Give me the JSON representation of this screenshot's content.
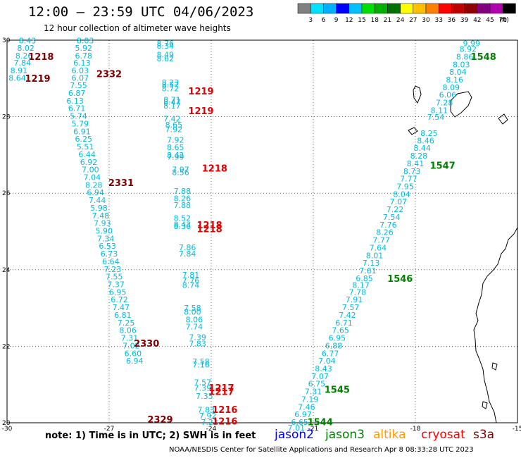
{
  "header": {
    "title": "12:00 – 23:59 UTC 04/06/2023",
    "subtitle": "12 hour collection of altimeter wave heights"
  },
  "colorbar": {
    "unit": "(ft)",
    "ticks": [
      "3",
      "6",
      "9",
      "12",
      "15",
      "18",
      "21",
      "24",
      "27",
      "30",
      "33",
      "36",
      "39",
      "42",
      "45",
      "70"
    ],
    "colors": [
      "#808080",
      "#00e0ff",
      "#00b0ff",
      "#0000ff",
      "#00c0ff",
      "#00e000",
      "#00b000",
      "#007000",
      "#ffff00",
      "#ffc000",
      "#ff8000",
      "#ff0000",
      "#c00000",
      "#900000",
      "#800080",
      "#b000b0",
      "#000000"
    ]
  },
  "chart_data": {
    "type": "scatter",
    "xlim": [
      -30,
      -15
    ],
    "ylim": [
      20,
      30
    ],
    "x_ticks": [
      "-30",
      "-27",
      "-24",
      "-21",
      "-18",
      "-15"
    ],
    "y_ticks": [
      "30",
      "28",
      "26",
      "24",
      "22",
      "20"
    ],
    "tracks": [
      {
        "name": "track-a",
        "color": "#00bbdd",
        "points": [
          {
            "lon": -29.4,
            "lat": 29.97,
            "v": "8.43"
          },
          {
            "lon": -29.45,
            "lat": 29.78,
            "v": "8.02"
          },
          {
            "lon": -29.5,
            "lat": 29.58,
            "v": "8.26"
          },
          {
            "lon": -29.55,
            "lat": 29.39,
            "v": "7.84"
          },
          {
            "lon": -29.65,
            "lat": 29.19,
            "v": "8.91"
          },
          {
            "lon": -29.7,
            "lat": 29.0,
            "v": "8.64"
          }
        ]
      },
      {
        "name": "track-b",
        "color": "#00bbdd",
        "points": [
          {
            "lon": -27.7,
            "lat": 29.97,
            "v": "8.03"
          },
          {
            "lon": -27.75,
            "lat": 29.78,
            "v": "5.92"
          },
          {
            "lon": -27.75,
            "lat": 29.58,
            "v": "6.78"
          },
          {
            "lon": -27.8,
            "lat": 29.39,
            "v": "6.13"
          },
          {
            "lon": -27.85,
            "lat": 29.19,
            "v": "6.03"
          },
          {
            "lon": -27.85,
            "lat": 29.0,
            "v": "6.07"
          },
          {
            "lon": -27.9,
            "lat": 28.8,
            "v": "7.55"
          },
          {
            "lon": -27.95,
            "lat": 28.6,
            "v": "6.87"
          },
          {
            "lon": -28.0,
            "lat": 28.4,
            "v": "6.13"
          },
          {
            "lon": -27.95,
            "lat": 28.2,
            "v": "6.71"
          },
          {
            "lon": -27.9,
            "lat": 28.0,
            "v": "5.74"
          },
          {
            "lon": -27.85,
            "lat": 27.8,
            "v": "5.79"
          },
          {
            "lon": -27.8,
            "lat": 27.6,
            "v": "6.91"
          },
          {
            "lon": -27.75,
            "lat": 27.4,
            "v": "6.25"
          },
          {
            "lon": -27.7,
            "lat": 27.2,
            "v": "5.51"
          },
          {
            "lon": -27.65,
            "lat": 27.0,
            "v": "6.44"
          },
          {
            "lon": -27.6,
            "lat": 26.8,
            "v": "6.92"
          },
          {
            "lon": -27.55,
            "lat": 26.6,
            "v": "7.00"
          },
          {
            "lon": -27.5,
            "lat": 26.4,
            "v": "7.04"
          },
          {
            "lon": -27.45,
            "lat": 26.2,
            "v": "8.28"
          },
          {
            "lon": -27.4,
            "lat": 26.0,
            "v": "6.94"
          },
          {
            "lon": -27.35,
            "lat": 25.8,
            "v": "7.44"
          },
          {
            "lon": -27.3,
            "lat": 25.6,
            "v": "5.98"
          },
          {
            "lon": -27.25,
            "lat": 25.4,
            "v": "7.48"
          },
          {
            "lon": -27.2,
            "lat": 25.2,
            "v": "7.93"
          },
          {
            "lon": -27.15,
            "lat": 25.0,
            "v": "5.90"
          },
          {
            "lon": -27.1,
            "lat": 24.8,
            "v": "7.34"
          },
          {
            "lon": -27.05,
            "lat": 24.6,
            "v": "6.53"
          },
          {
            "lon": -27.0,
            "lat": 24.4,
            "v": "6.73"
          },
          {
            "lon": -26.95,
            "lat": 24.2,
            "v": "6.64"
          },
          {
            "lon": -26.9,
            "lat": 24.0,
            "v": "7.23"
          },
          {
            "lon": -26.85,
            "lat": 23.8,
            "v": "7.55"
          },
          {
            "lon": -26.8,
            "lat": 23.6,
            "v": "7.37"
          },
          {
            "lon": -26.75,
            "lat": 23.4,
            "v": "6.95"
          },
          {
            "lon": -26.7,
            "lat": 23.2,
            "v": "6.72"
          },
          {
            "lon": -26.65,
            "lat": 23.0,
            "v": "7.47"
          },
          {
            "lon": -26.6,
            "lat": 22.8,
            "v": "6.81"
          },
          {
            "lon": -26.5,
            "lat": 22.6,
            "v": "7.25"
          },
          {
            "lon": -26.45,
            "lat": 22.4,
            "v": "8.06"
          },
          {
            "lon": -26.4,
            "lat": 22.2,
            "v": "7.31"
          },
          {
            "lon": -26.35,
            "lat": 22.0,
            "v": "7.02"
          },
          {
            "lon": -26.3,
            "lat": 21.8,
            "v": "6.60"
          },
          {
            "lon": -26.25,
            "lat": 21.6,
            "v": "6.94"
          }
        ]
      },
      {
        "name": "track-c",
        "color": "#00bbdd",
        "points": [
          {
            "lon": -25.35,
            "lat": 29.9,
            "v": "8.76"
          },
          {
            "lon": -25.35,
            "lat": 29.83,
            "v": "8.34"
          },
          {
            "lon": -25.35,
            "lat": 29.6,
            "v": "8.49"
          },
          {
            "lon": -25.35,
            "lat": 29.5,
            "v": "8.62"
          },
          {
            "lon": -25.2,
            "lat": 28.88,
            "v": "8.23"
          },
          {
            "lon": -25.2,
            "lat": 28.82,
            "v": "8.57"
          },
          {
            "lon": -25.2,
            "lat": 28.72,
            "v": "8.72"
          },
          {
            "lon": -25.15,
            "lat": 28.43,
            "v": "8.71"
          },
          {
            "lon": -25.15,
            "lat": 28.37,
            "v": "8.47"
          },
          {
            "lon": -25.15,
            "lat": 28.27,
            "v": "8.17"
          },
          {
            "lon": -25.15,
            "lat": 27.93,
            "v": "7.42"
          },
          {
            "lon": -25.1,
            "lat": 27.77,
            "v": "8.65"
          },
          {
            "lon": -25.1,
            "lat": 27.65,
            "v": "7.92"
          },
          {
            "lon": -25.05,
            "lat": 27.38,
            "v": "7.92"
          },
          {
            "lon": -25.05,
            "lat": 27.18,
            "v": "8.65"
          },
          {
            "lon": -25.05,
            "lat": 26.98,
            "v": "8.42"
          },
          {
            "lon": -25.05,
            "lat": 26.93,
            "v": "7.99"
          },
          {
            "lon": -24.9,
            "lat": 26.6,
            "v": "7.97"
          },
          {
            "lon": -24.9,
            "lat": 26.53,
            "v": "8.56"
          },
          {
            "lon": -24.85,
            "lat": 26.04,
            "v": "7.88"
          },
          {
            "lon": -24.85,
            "lat": 25.85,
            "v": "8.26"
          },
          {
            "lon": -24.85,
            "lat": 25.67,
            "v": "7.88"
          },
          {
            "lon": -24.85,
            "lat": 25.33,
            "v": "8.52"
          },
          {
            "lon": -24.85,
            "lat": 25.17,
            "v": "8.43"
          },
          {
            "lon": -24.85,
            "lat": 25.12,
            "v": "8.36"
          },
          {
            "lon": -24.7,
            "lat": 24.57,
            "v": "7.86"
          },
          {
            "lon": -24.7,
            "lat": 24.4,
            "v": "7.84"
          },
          {
            "lon": -24.6,
            "lat": 23.85,
            "v": "7.81"
          },
          {
            "lon": -24.6,
            "lat": 23.7,
            "v": "7.76"
          },
          {
            "lon": -24.6,
            "lat": 23.58,
            "v": "8.74"
          },
          {
            "lon": -24.55,
            "lat": 22.98,
            "v": "7.58"
          },
          {
            "lon": -24.55,
            "lat": 22.88,
            "v": "8.00"
          },
          {
            "lon": -24.5,
            "lat": 22.68,
            "v": "8.06"
          },
          {
            "lon": -24.5,
            "lat": 22.5,
            "v": "7.74"
          },
          {
            "lon": -24.4,
            "lat": 22.22,
            "v": "7.39"
          },
          {
            "lon": -24.4,
            "lat": 22.05,
            "v": "7.83"
          },
          {
            "lon": -24.3,
            "lat": 21.58,
            "v": "7.58"
          },
          {
            "lon": -24.3,
            "lat": 21.5,
            "v": "7.16"
          },
          {
            "lon": -24.25,
            "lat": 21.04,
            "v": "7.57"
          },
          {
            "lon": -24.25,
            "lat": 20.89,
            "v": "7.39"
          },
          {
            "lon": -24.2,
            "lat": 20.68,
            "v": "7.35"
          },
          {
            "lon": -24.15,
            "lat": 20.32,
            "v": "7.83"
          },
          {
            "lon": -24.1,
            "lat": 20.17,
            "v": "7.92"
          },
          {
            "lon": -24.05,
            "lat": 20.0,
            "v": "7.23"
          }
        ]
      },
      {
        "name": "track-d",
        "color": "#00bbdd",
        "points": [
          {
            "lon": -16.35,
            "lat": 29.9,
            "v": "9.99"
          },
          {
            "lon": -16.45,
            "lat": 29.75,
            "v": "8.92"
          },
          {
            "lon": -16.55,
            "lat": 29.55,
            "v": "8.86"
          },
          {
            "lon": -16.65,
            "lat": 29.35,
            "v": "8.03"
          },
          {
            "lon": -16.75,
            "lat": 29.15,
            "v": "8.04"
          },
          {
            "lon": -16.85,
            "lat": 28.95,
            "v": "8.16"
          },
          {
            "lon": -16.95,
            "lat": 28.75,
            "v": "8.09"
          },
          {
            "lon": -17.05,
            "lat": 28.55,
            "v": "6.06"
          },
          {
            "lon": -17.15,
            "lat": 28.35,
            "v": "7.28"
          },
          {
            "lon": -17.3,
            "lat": 28.15,
            "v": "8.11"
          },
          {
            "lon": -17.4,
            "lat": 27.97,
            "v": "7.54"
          },
          {
            "lon": -17.6,
            "lat": 27.55,
            "v": "8.25"
          },
          {
            "lon": -17.7,
            "lat": 27.36,
            "v": "8.46"
          },
          {
            "lon": -17.8,
            "lat": 27.16,
            "v": "8.44"
          },
          {
            "lon": -17.9,
            "lat": 26.96,
            "v": "8.28"
          },
          {
            "lon": -18.0,
            "lat": 26.76,
            "v": "8.41"
          },
          {
            "lon": -18.1,
            "lat": 26.56,
            "v": "8.73"
          },
          {
            "lon": -18.2,
            "lat": 26.36,
            "v": "7.77"
          },
          {
            "lon": -18.3,
            "lat": 26.16,
            "v": "7.95"
          },
          {
            "lon": -18.4,
            "lat": 25.96,
            "v": "8.04"
          },
          {
            "lon": -18.5,
            "lat": 25.76,
            "v": "7.07"
          },
          {
            "lon": -18.6,
            "lat": 25.56,
            "v": "7.22"
          },
          {
            "lon": -18.7,
            "lat": 25.36,
            "v": "7.54"
          },
          {
            "lon": -18.8,
            "lat": 25.16,
            "v": "7.76"
          },
          {
            "lon": -18.9,
            "lat": 24.96,
            "v": "8.26"
          },
          {
            "lon": -19.0,
            "lat": 24.76,
            "v": "7.77"
          },
          {
            "lon": -19.1,
            "lat": 24.56,
            "v": "7.64"
          },
          {
            "lon": -19.2,
            "lat": 24.36,
            "v": "8.01"
          },
          {
            "lon": -19.3,
            "lat": 24.16,
            "v": "7.13"
          },
          {
            "lon": -19.4,
            "lat": 23.96,
            "v": "7.61"
          },
          {
            "lon": -19.5,
            "lat": 23.76,
            "v": "6.85"
          },
          {
            "lon": -19.6,
            "lat": 23.58,
            "v": "8.17"
          },
          {
            "lon": -19.7,
            "lat": 23.4,
            "v": "7.78"
          },
          {
            "lon": -19.8,
            "lat": 23.2,
            "v": "7.91"
          },
          {
            "lon": -19.9,
            "lat": 23.0,
            "v": "7.57"
          },
          {
            "lon": -20.0,
            "lat": 22.8,
            "v": "7.42"
          },
          {
            "lon": -20.1,
            "lat": 22.6,
            "v": "6.71"
          },
          {
            "lon": -20.2,
            "lat": 22.4,
            "v": "7.65"
          },
          {
            "lon": -20.3,
            "lat": 22.2,
            "v": "6.95"
          },
          {
            "lon": -20.4,
            "lat": 22.0,
            "v": "6.88"
          },
          {
            "lon": -20.5,
            "lat": 21.8,
            "v": "6.77"
          },
          {
            "lon": -20.6,
            "lat": 21.6,
            "v": "7.04"
          },
          {
            "lon": -20.7,
            "lat": 21.4,
            "v": "8.43"
          },
          {
            "lon": -20.8,
            "lat": 21.2,
            "v": "7.07"
          },
          {
            "lon": -20.9,
            "lat": 21.0,
            "v": "6.75"
          },
          {
            "lon": -21.0,
            "lat": 20.8,
            "v": "7.31"
          },
          {
            "lon": -21.1,
            "lat": 20.6,
            "v": "7.19"
          },
          {
            "lon": -21.2,
            "lat": 20.4,
            "v": "7.46"
          },
          {
            "lon": -21.3,
            "lat": 20.2,
            "v": "6.97"
          },
          {
            "lon": -21.4,
            "lat": 20.0,
            "v": "6.65"
          },
          {
            "lon": -21.5,
            "lat": 19.85,
            "v": "7.01"
          }
        ]
      }
    ],
    "time_labels": [
      {
        "lon": -29.0,
        "lat": 29.55,
        "text": "1218",
        "color": "#800000"
      },
      {
        "lon": -29.1,
        "lat": 28.98,
        "text": "1219",
        "color": "#800000"
      },
      {
        "lon": -27.0,
        "lat": 29.1,
        "text": "2332",
        "color": "#800000"
      },
      {
        "lon": -24.3,
        "lat": 28.65,
        "text": "1219",
        "color": "#e00000"
      },
      {
        "lon": -24.3,
        "lat": 28.13,
        "text": "1219",
        "color": "#e00000"
      },
      {
        "lon": -23.9,
        "lat": 26.63,
        "text": "1218",
        "color": "#e00000"
      },
      {
        "lon": -26.65,
        "lat": 26.25,
        "text": "2331",
        "color": "#800000"
      },
      {
        "lon": -24.05,
        "lat": 25.15,
        "text": "1218",
        "color": "#e00000"
      },
      {
        "lon": -24.05,
        "lat": 25.05,
        "text": "1218",
        "color": "#e00000"
      },
      {
        "lon": -25.9,
        "lat": 22.05,
        "text": "2330",
        "color": "#800000"
      },
      {
        "lon": -23.7,
        "lat": 20.89,
        "text": "1217",
        "color": "#e00000"
      },
      {
        "lon": -23.7,
        "lat": 20.79,
        "text": "1217",
        "color": "#e00000"
      },
      {
        "lon": -23.6,
        "lat": 20.32,
        "text": "1216",
        "color": "#e00000"
      },
      {
        "lon": -23.6,
        "lat": 20.02,
        "text": "1216",
        "color": "#e00000"
      },
      {
        "lon": -25.5,
        "lat": 20.06,
        "text": "2329",
        "color": "#800000"
      },
      {
        "lon": -16.0,
        "lat": 29.55,
        "text": "1548",
        "color": "#008000"
      },
      {
        "lon": -17.2,
        "lat": 26.7,
        "text": "1547",
        "color": "#008000"
      },
      {
        "lon": -18.45,
        "lat": 23.75,
        "text": "1546",
        "color": "#008000"
      },
      {
        "lon": -20.3,
        "lat": 20.85,
        "text": "1545",
        "color": "#008000"
      },
      {
        "lon": -20.8,
        "lat": 20.0,
        "text": "1544",
        "color": "#008000"
      }
    ]
  },
  "footer": {
    "note": "note: 1) Time is in UTC; 2) SWH is in feet",
    "satellites": [
      {
        "name": "jason2",
        "color": "#0000ff"
      },
      {
        "name": "jason3",
        "color": "#008000"
      },
      {
        "name": "altika",
        "color": "#ff9900"
      },
      {
        "name": "cryosat",
        "color": "#ff0000"
      },
      {
        "name": "s3a",
        "color": "#800000"
      }
    ],
    "credit": "NOAA/NESDIS Center for Satellite Applications and Research    Apr  8 08:33:28 UTC 2023"
  }
}
